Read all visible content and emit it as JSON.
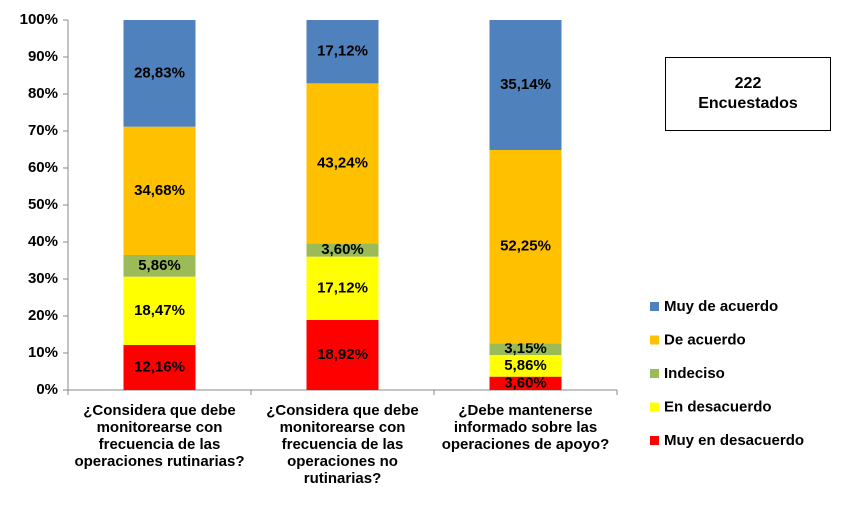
{
  "chart_data": {
    "type": "stacked_bar",
    "categories": [
      "¿Considera que debe monitorearse con frecuencia de las operaciones rutinarias?",
      "¿Considera que debe monitorearse con frecuencia de las operaciones no rutinarias?",
      "¿Debe mantenerse informado sobre las operaciones de apoyo?"
    ],
    "series": [
      {
        "name": "Muy en desacuerdo",
        "color": "#ff0000",
        "values": [
          12.16,
          18.92,
          3.6
        ],
        "value_labels": [
          "12,16%",
          "18,92%",
          "3,60%"
        ]
      },
      {
        "name": "En desacuerdo",
        "color": "#ffff00",
        "values": [
          18.47,
          17.12,
          5.86
        ],
        "value_labels": [
          "18,47%",
          "17,12%",
          "5,86%"
        ]
      },
      {
        "name": "Indeciso",
        "color": "#9bbb59",
        "values": [
          5.86,
          3.6,
          3.15
        ],
        "value_labels": [
          "5,86%",
          "3,60%",
          "3,15%"
        ]
      },
      {
        "name": "De acuerdo",
        "color": "#ffc000",
        "values": [
          34.68,
          43.24,
          52.25
        ],
        "value_labels": [
          "34,68%",
          "43,24%",
          "52,25%"
        ]
      },
      {
        "name": "Muy de acuerdo",
        "color": "#4f81bd",
        "values": [
          28.83,
          17.12,
          35.14
        ],
        "value_labels": [
          "28,83%",
          "17,12%",
          "35,14%"
        ]
      }
    ],
    "ylim": [
      0,
      100
    ],
    "yticks": [
      {
        "value": 0,
        "label": "0%"
      },
      {
        "value": 10,
        "label": "10%"
      },
      {
        "value": 20,
        "label": "20%"
      },
      {
        "value": 30,
        "label": "30%"
      },
      {
        "value": 40,
        "label": "40%"
      },
      {
        "value": 50,
        "label": "50%"
      },
      {
        "value": 60,
        "label": "60%"
      },
      {
        "value": 70,
        "label": "70%"
      },
      {
        "value": 80,
        "label": "80%"
      },
      {
        "value": 90,
        "label": "90%"
      },
      {
        "value": 100,
        "label": "100%"
      }
    ],
    "annotation": "222 Encuestados",
    "legend": "right"
  }
}
